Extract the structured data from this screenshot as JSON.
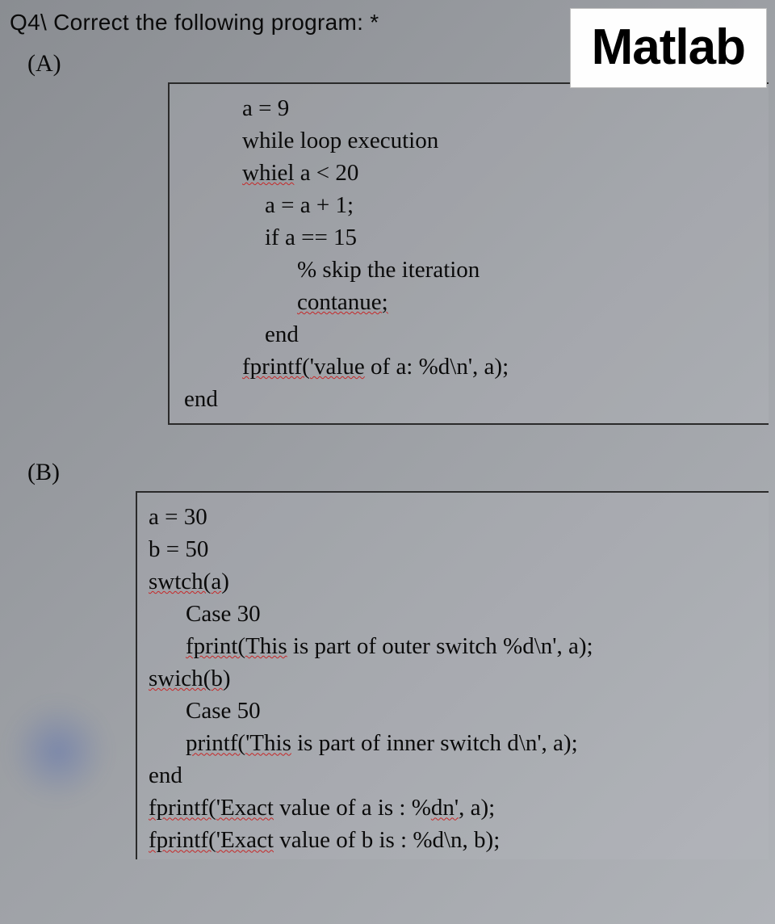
{
  "question": "Q4\\ Correct the following program: *",
  "badge": "Matlab",
  "sections": {
    "a": {
      "label": "(A)",
      "lines": [
        {
          "indent": "i1",
          "segments": [
            {
              "t": "a = 9"
            }
          ]
        },
        {
          "indent": "i1",
          "segments": [
            {
              "t": "while loop execution"
            }
          ]
        },
        {
          "indent": "i1",
          "segments": [
            {
              "t": "whiel",
              "sq": true
            },
            {
              "t": " a < 20"
            }
          ]
        },
        {
          "indent": "i2",
          "segments": [
            {
              "t": "a = a + 1;"
            }
          ]
        },
        {
          "indent": "i2",
          "segments": [
            {
              "t": "if a == 15"
            }
          ]
        },
        {
          "indent": "i3",
          "segments": [
            {
              "t": "% skip the iteration"
            }
          ]
        },
        {
          "indent": "i3",
          "segments": [
            {
              "t": "contanue;",
              "sq": true
            }
          ]
        },
        {
          "indent": "i2",
          "segments": [
            {
              "t": "end"
            }
          ]
        },
        {
          "indent": "i1",
          "segments": [
            {
              "t": "fprintf('value",
              "sq": true
            },
            {
              "t": " of a: %d\\n', a);"
            }
          ]
        },
        {
          "indent": "i0",
          "segments": [
            {
              "t": "end"
            }
          ]
        }
      ]
    },
    "b": {
      "label": "(B)",
      "lines": [
        {
          "indent": "ib1",
          "segments": [
            {
              "t": "a = 30"
            }
          ]
        },
        {
          "indent": "ib1",
          "segments": [
            {
              "t": "b = 50"
            }
          ]
        },
        {
          "indent": "ib1",
          "segments": [
            {
              "t": "swtch(a",
              "sq": true
            },
            {
              "t": ")"
            }
          ]
        },
        {
          "indent": "ib2",
          "segments": [
            {
              "t": "Case 30"
            }
          ]
        },
        {
          "indent": "ib2",
          "segments": [
            {
              "t": "fprint(This",
              "sq": true
            },
            {
              "t": " is part of outer switch %d\\n', a);"
            }
          ]
        },
        {
          "indent": "ib1",
          "segments": [
            {
              "t": "swich(b",
              "sq": true
            },
            {
              "t": ")"
            }
          ]
        },
        {
          "indent": "ib2",
          "segments": [
            {
              "t": "Case 50"
            }
          ]
        },
        {
          "indent": "ib2",
          "segments": [
            {
              "t": "printf('This",
              "sq": true
            },
            {
              "t": " is part of inner switch d\\n', a);"
            }
          ]
        },
        {
          "indent": "ib1",
          "segments": [
            {
              "t": "end"
            }
          ]
        },
        {
          "indent": "ib1",
          "segments": [
            {
              "t": "fprintf('Exact",
              "sq": true
            },
            {
              "t": " value of a is : %"
            },
            {
              "t": "dn'",
              "sq": true
            },
            {
              "t": ", a);"
            }
          ]
        },
        {
          "indent": "ib1",
          "segments": [
            {
              "t": "fprintf('Exact",
              "sq": true
            },
            {
              "t": " value of b is : %d\\n, b);"
            }
          ]
        }
      ]
    }
  },
  "styling": {
    "background_gradient": [
      "#8a8d92",
      "#9ea1a6",
      "#b0b3b8"
    ],
    "text_color": "#0a0a0a",
    "squiggle_color": "#c62828",
    "border_color": "#2a2a2a",
    "matlab_bg": "#fefefe",
    "matlab_font_size": 62,
    "code_font_size": 29,
    "question_font_size": 28,
    "section_label_font_size": 30
  }
}
